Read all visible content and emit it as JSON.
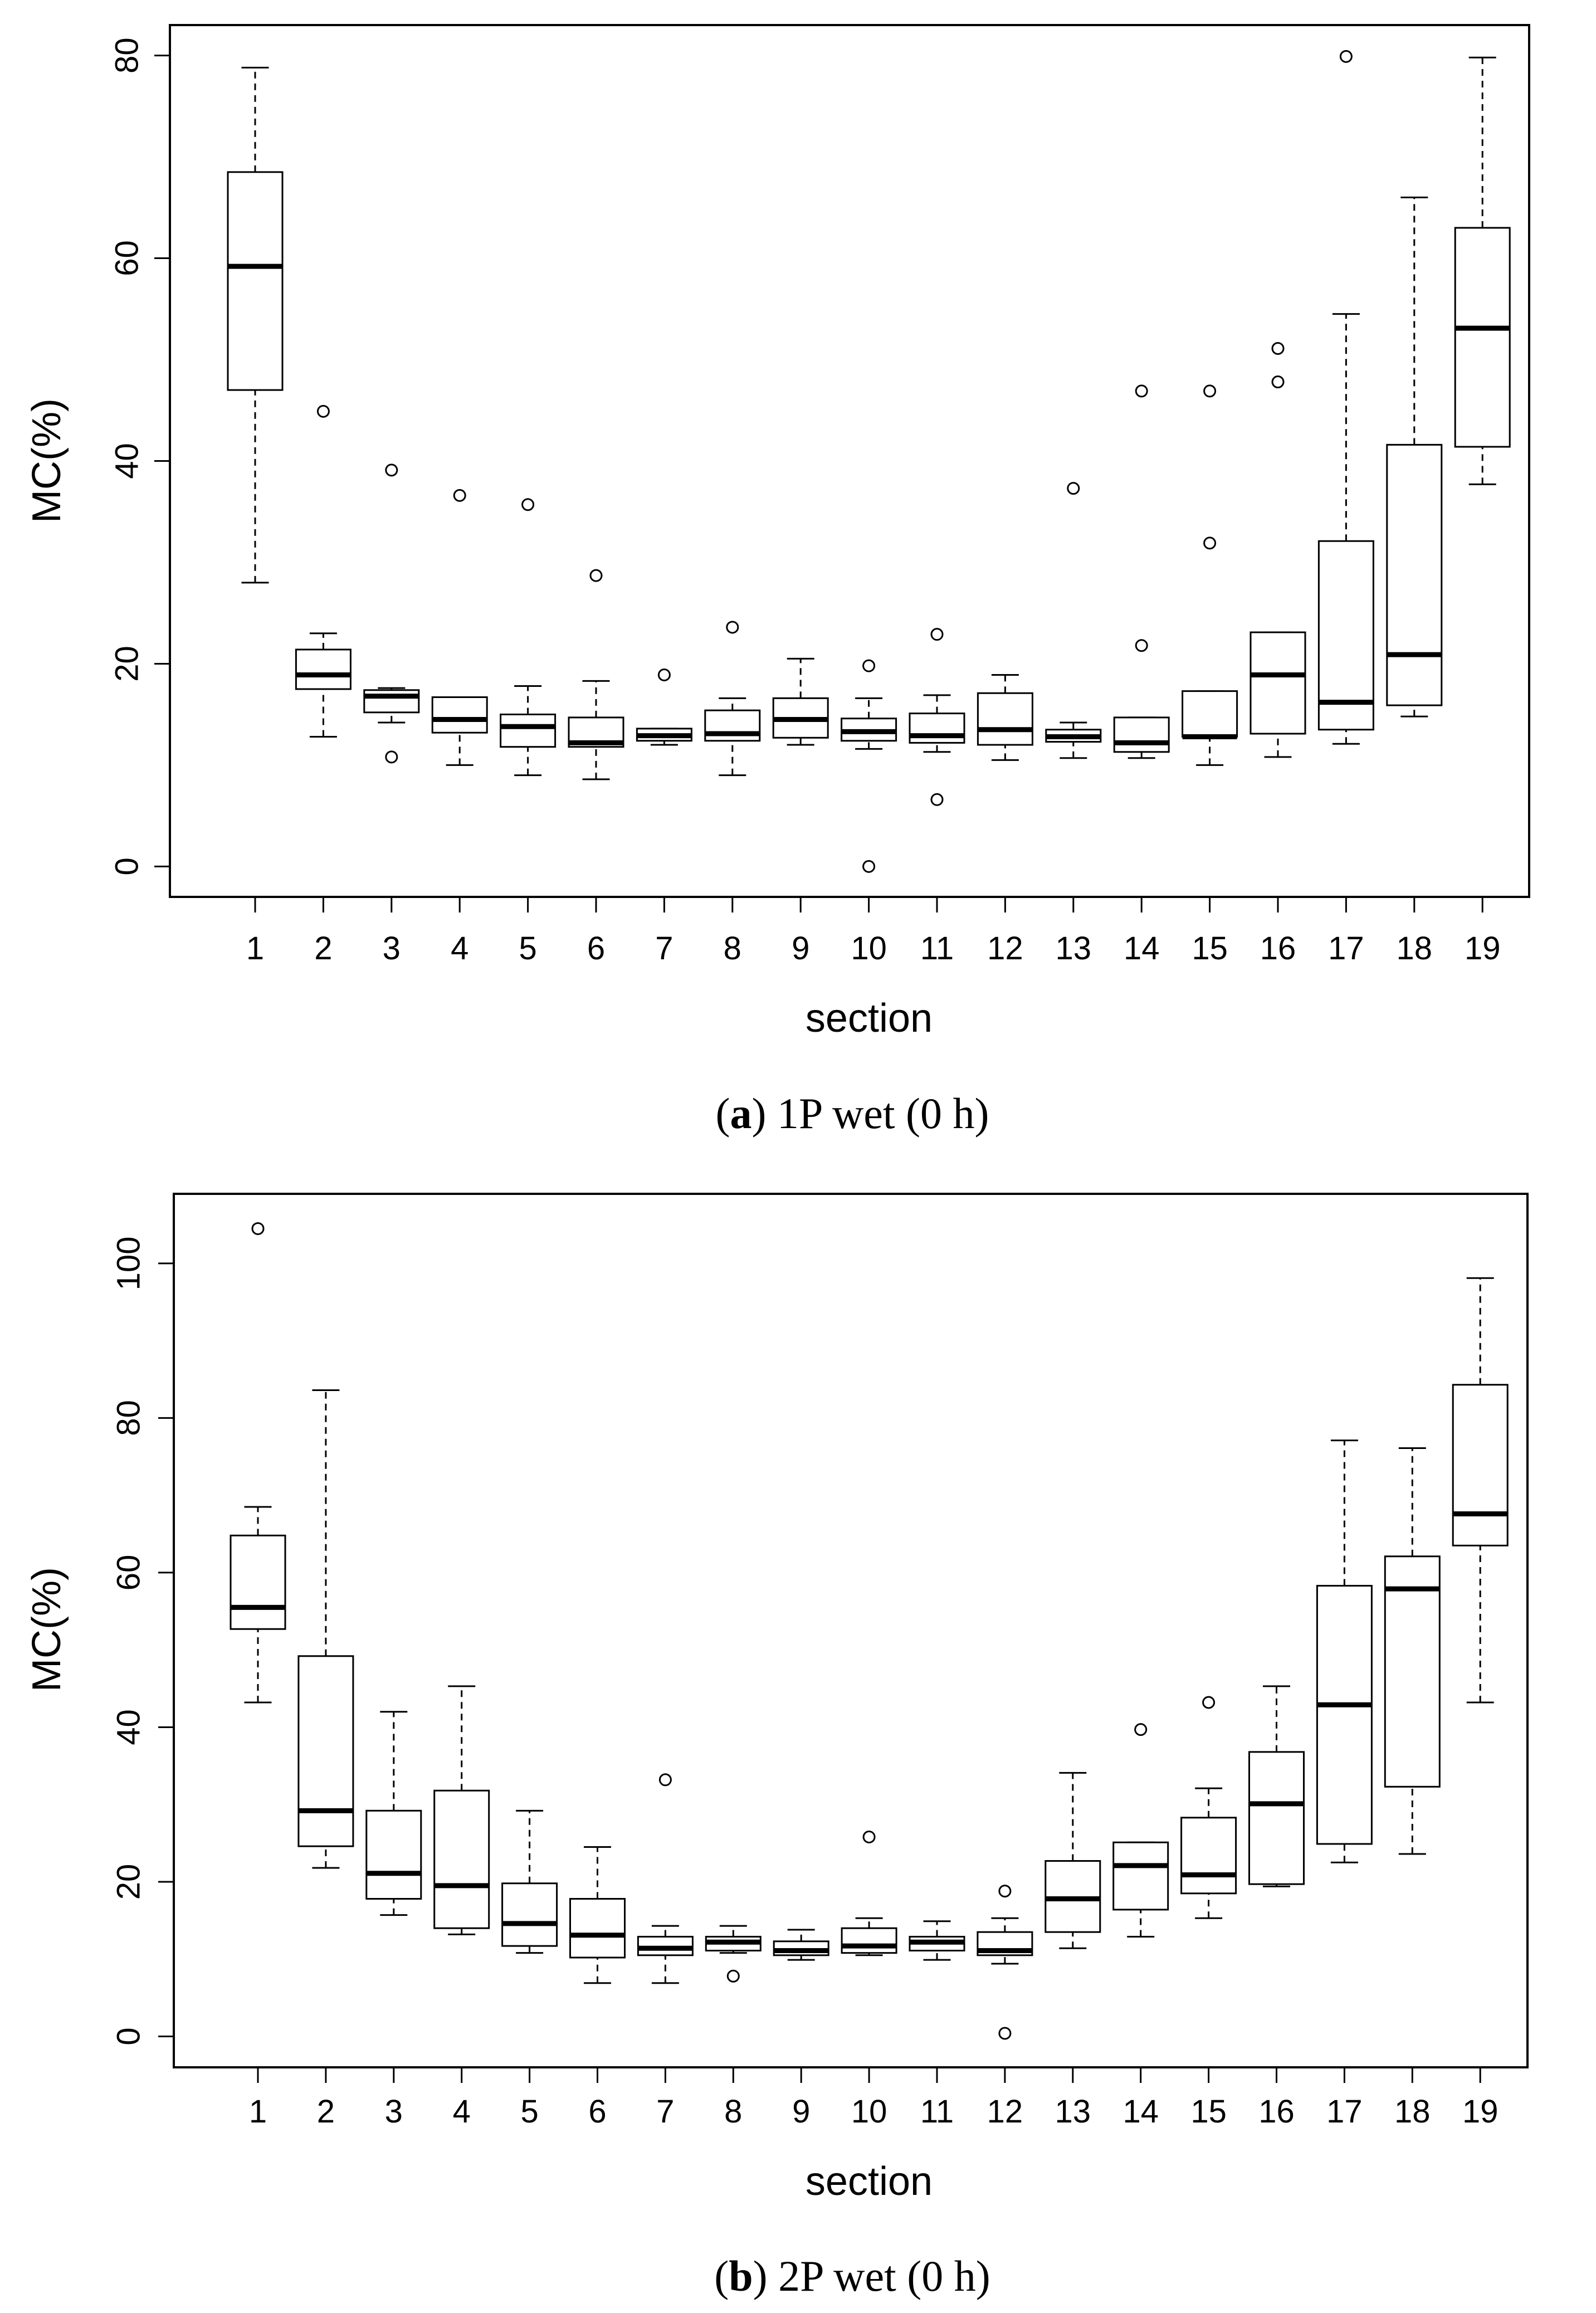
{
  "chart_data": [
    {
      "type": "boxplot",
      "caption_letter": "a",
      "caption_text": "1P wet (0 h)",
      "xlabel": "section",
      "ylabel": "MC(%)",
      "ylim": [
        -3,
        83
      ],
      "yticks": [
        0,
        20,
        40,
        60,
        80
      ],
      "categories": [
        "1",
        "2",
        "3",
        "4",
        "5",
        "6",
        "7",
        "8",
        "9",
        "10",
        "11",
        "12",
        "13",
        "14",
        "15",
        "16",
        "17",
        "18",
        "19"
      ],
      "boxes": [
        {
          "low": 28,
          "q1": 47,
          "median": 59.2,
          "q3": 68.5,
          "high": 78.8,
          "outliers": []
        },
        {
          "low": 12.8,
          "q1": 17.5,
          "median": 18.9,
          "q3": 21.4,
          "high": 23,
          "outliers": [
            44.9
          ]
        },
        {
          "low": 14.2,
          "q1": 15.2,
          "median": 16.8,
          "q3": 17.4,
          "high": 17.6,
          "outliers": [
            39.1,
            10.8
          ]
        },
        {
          "low": 10,
          "q1": 13.2,
          "median": 14.5,
          "q3": 16.7,
          "high": 16.7,
          "outliers": [
            36.6
          ]
        },
        {
          "low": 9,
          "q1": 11.8,
          "median": 13.8,
          "q3": 15,
          "high": 17.8,
          "outliers": [
            35.7
          ]
        },
        {
          "low": 8.6,
          "q1": 11.8,
          "median": 12.2,
          "q3": 14.7,
          "high": 18.3,
          "outliers": [
            28.7
          ]
        },
        {
          "low": 12,
          "q1": 12.4,
          "median": 12.9,
          "q3": 13.6,
          "high": 13.6,
          "outliers": [
            18.9
          ]
        },
        {
          "low": 9,
          "q1": 12.4,
          "median": 13.1,
          "q3": 15.4,
          "high": 16.6,
          "outliers": [
            23.6
          ]
        },
        {
          "low": 12,
          "q1": 12.7,
          "median": 14.5,
          "q3": 16.6,
          "high": 20.5,
          "outliers": []
        },
        {
          "low": 11.6,
          "q1": 12.4,
          "median": 13.3,
          "q3": 14.6,
          "high": 16.6,
          "outliers": [
            19.8,
            0
          ]
        },
        {
          "low": 11.3,
          "q1": 12.2,
          "median": 12.9,
          "q3": 15.1,
          "high": 16.9,
          "outliers": [
            22.9,
            6.6
          ]
        },
        {
          "low": 10.5,
          "q1": 12,
          "median": 13.5,
          "q3": 17.1,
          "high": 18.9,
          "outliers": []
        },
        {
          "low": 10.7,
          "q1": 12.3,
          "median": 12.8,
          "q3": 13.5,
          "high": 14.2,
          "outliers": [
            37.3
          ]
        },
        {
          "low": 10.7,
          "q1": 11.3,
          "median": 12.2,
          "q3": 14.7,
          "high": 14.7,
          "outliers": [
            46.9,
            21.8
          ]
        },
        {
          "low": 10,
          "q1": 12.8,
          "median": 12.8,
          "q3": 17.3,
          "high": 17.3,
          "outliers": [
            46.9,
            31.9
          ]
        },
        {
          "low": 10.8,
          "q1": 13.1,
          "median": 18.9,
          "q3": 23.1,
          "high": 23.1,
          "outliers": [
            51.1,
            47.8
          ]
        },
        {
          "low": 12.1,
          "q1": 13.5,
          "median": 16.2,
          "q3": 32.1,
          "high": 54.5,
          "outliers": [
            79.9
          ]
        },
        {
          "low": 14.8,
          "q1": 15.9,
          "median": 20.9,
          "q3": 41.6,
          "high": 66,
          "outliers": []
        },
        {
          "low": 37.7,
          "q1": 41.4,
          "median": 53.1,
          "q3": 63,
          "high": 79.8,
          "outliers": []
        }
      ]
    },
    {
      "type": "boxplot",
      "caption_letter": "b",
      "caption_text": "2P wet (0 h)",
      "xlabel": "section",
      "ylabel": "MC(%)",
      "ylim": [
        -4,
        109
      ],
      "yticks": [
        0,
        20,
        40,
        60,
        80,
        100
      ],
      "categories": [
        "1",
        "2",
        "3",
        "4",
        "5",
        "6",
        "7",
        "8",
        "9",
        "10",
        "11",
        "12",
        "13",
        "14",
        "15",
        "16",
        "17",
        "18",
        "19"
      ],
      "boxes": [
        {
          "low": 43.2,
          "q1": 52.7,
          "median": 55.5,
          "q3": 64.8,
          "high": 68.5,
          "outliers": [
            104.5
          ]
        },
        {
          "low": 21.8,
          "q1": 24.6,
          "median": 29.2,
          "q3": 49.2,
          "high": 83.6,
          "outliers": []
        },
        {
          "low": 15.7,
          "q1": 17.8,
          "median": 21.1,
          "q3": 29.2,
          "high": 42,
          "outliers": []
        },
        {
          "low": 13.2,
          "q1": 14,
          "median": 19.5,
          "q3": 31.8,
          "high": 45.3,
          "outliers": []
        },
        {
          "low": 10.8,
          "q1": 11.7,
          "median": 14.6,
          "q3": 19.8,
          "high": 29.2,
          "outliers": []
        },
        {
          "low": 6.9,
          "q1": 10.2,
          "median": 13.1,
          "q3": 17.8,
          "high": 24.5,
          "outliers": []
        },
        {
          "low": 6.9,
          "q1": 10.5,
          "median": 11.4,
          "q3": 12.9,
          "high": 14.3,
          "outliers": [
            33.2
          ]
        },
        {
          "low": 10.8,
          "q1": 11.1,
          "median": 12.2,
          "q3": 12.9,
          "high": 14.3,
          "outliers": [
            7.8
          ]
        },
        {
          "low": 9.9,
          "q1": 10.5,
          "median": 11.1,
          "q3": 12.3,
          "high": 13.8,
          "outliers": []
        },
        {
          "low": 10.5,
          "q1": 10.8,
          "median": 11.7,
          "q3": 14,
          "high": 15.3,
          "outliers": [
            25.8
          ]
        },
        {
          "low": 9.9,
          "q1": 11.1,
          "median": 12.2,
          "q3": 12.9,
          "high": 14.9,
          "outliers": []
        },
        {
          "low": 9.4,
          "q1": 10.5,
          "median": 11.1,
          "q3": 13.5,
          "high": 15.3,
          "outliers": [
            18.8,
            0.4
          ]
        },
        {
          "low": 11.4,
          "q1": 13.5,
          "median": 17.8,
          "q3": 22.7,
          "high": 34.1,
          "outliers": []
        },
        {
          "low": 12.9,
          "q1": 16.4,
          "median": 22.1,
          "q3": 25.1,
          "high": 25.1,
          "outliers": [
            39.7
          ]
        },
        {
          "low": 15.3,
          "q1": 18.5,
          "median": 20.9,
          "q3": 28.3,
          "high": 32.1,
          "outliers": [
            43.2
          ]
        },
        {
          "low": 19.4,
          "q1": 19.7,
          "median": 30.1,
          "q3": 36.8,
          "high": 45.3,
          "outliers": []
        },
        {
          "low": 22.5,
          "q1": 24.9,
          "median": 42.9,
          "q3": 58.3,
          "high": 77.1,
          "outliers": []
        },
        {
          "low": 23.6,
          "q1": 32.3,
          "median": 57.9,
          "q3": 62.1,
          "high": 76.1,
          "outliers": []
        },
        {
          "low": 43.2,
          "q1": 63.5,
          "median": 67.6,
          "q3": 84.3,
          "high": 98.1,
          "outliers": []
        }
      ]
    }
  ]
}
